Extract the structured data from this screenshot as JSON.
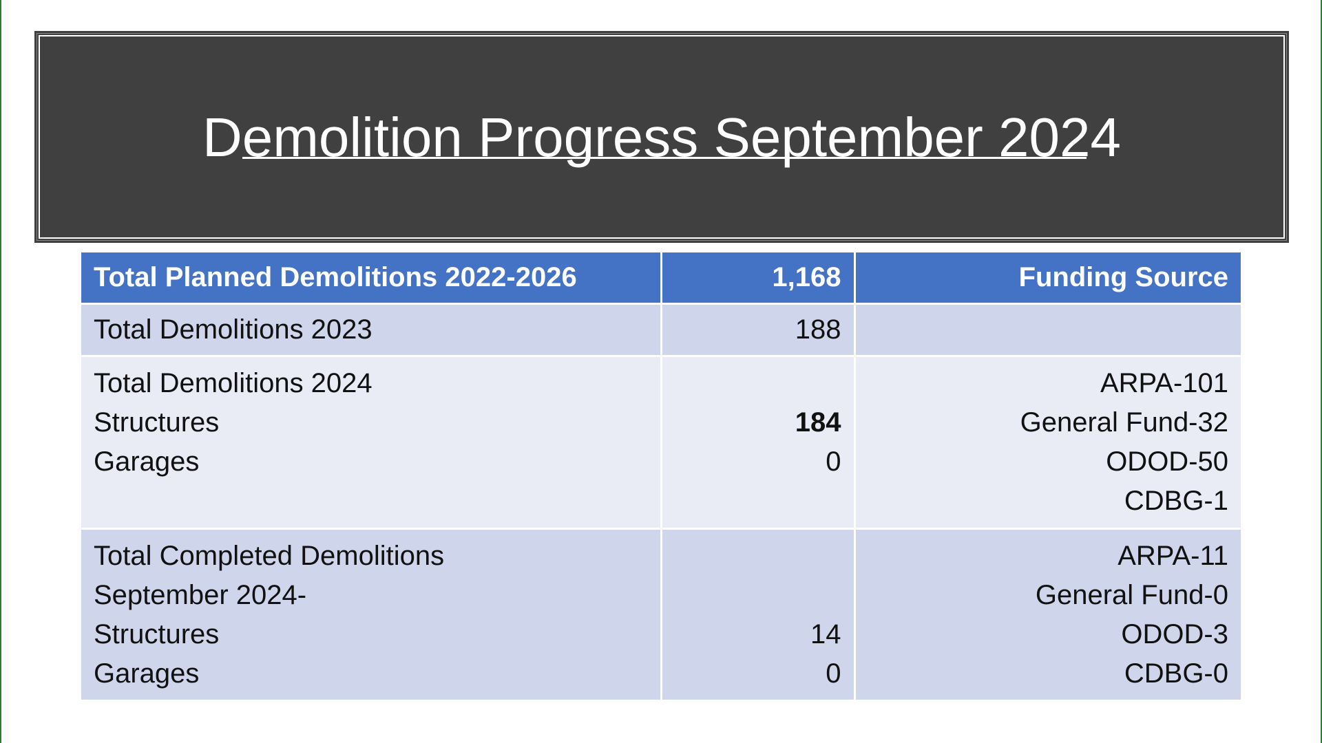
{
  "slide": {
    "title": "Demolition Progress September 2024"
  },
  "table": {
    "header": {
      "label": "Total Planned Demolitions 2022-2026",
      "value": "1,168",
      "funding": "Funding Source"
    },
    "row1": {
      "label": "Total Demolitions 2023",
      "value": "188",
      "funding": ""
    },
    "row2": {
      "label_lines": [
        "Total Demolitions 2024",
        "Structures",
        "Garages"
      ],
      "value_structures": "184",
      "value_garages": "0",
      "funding_lines": [
        "ARPA-101",
        "General Fund-32",
        "ODOD-50",
        "CDBG-1"
      ]
    },
    "row3": {
      "label_lines": [
        "Total Completed Demolitions",
        "September 2024-",
        "Structures",
        "Garages"
      ],
      "value_structures": "14",
      "value_garages": "0",
      "funding_lines": [
        "ARPA-11",
        "General Fund-0",
        "ODOD-3",
        "CDBG-0"
      ]
    }
  },
  "colors": {
    "banner": "#404040",
    "header": "#4472c4",
    "row_dark": "#cfd5ea",
    "row_light": "#e9ebf5"
  }
}
